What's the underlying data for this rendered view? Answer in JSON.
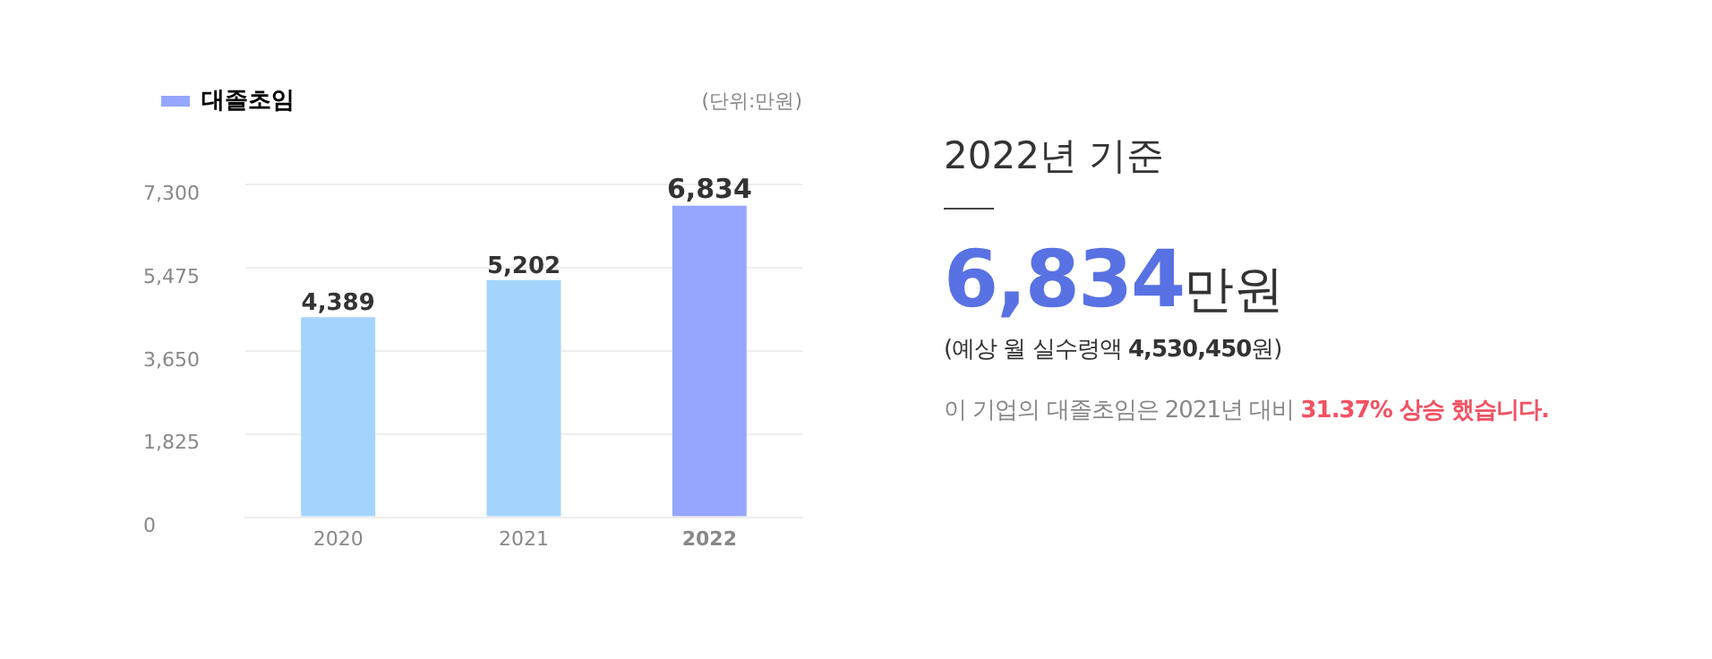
{
  "chart_data": [
    {
      "type": "bar",
      "categories": [
        "2020",
        "2021",
        "2022"
      ],
      "series": [
        {
          "name": "대졸초임",
          "color": "#96a6fe",
          "colors": [
            "#a4d4fe",
            "#a4d4fe",
            "#96a6fe"
          ],
          "values": [
            4389,
            5202,
            6834
          ],
          "value_labels": [
            "4,389",
            "5,202",
            "6,834"
          ]
        }
      ],
      "ylim": [
        0,
        7300
      ],
      "yticks": [
        0,
        {
          "value": 1825,
          "label": "1,825"
        },
        {
          "value": 3650,
          "label": "3,650"
        },
        {
          "value": 5475,
          "label": "5,475"
        },
        {
          "value": 7300,
          "label": "7,300"
        }
      ],
      "grid": "y",
      "legend": "top left",
      "annotations": [
        "(단위:만원)"
      ]
    },
    {
      "type": "other",
      "title": "2022년 기준",
      "annotations": [
        "6,834",
        "만원",
        "(예상 월 실수령액 ",
        "4,530,450",
        "원)",
        "이 기업의 대졸초임은 2021년 대비 ",
        "31.37% 상승 했습니다."
      ]
    }
  ]
}
